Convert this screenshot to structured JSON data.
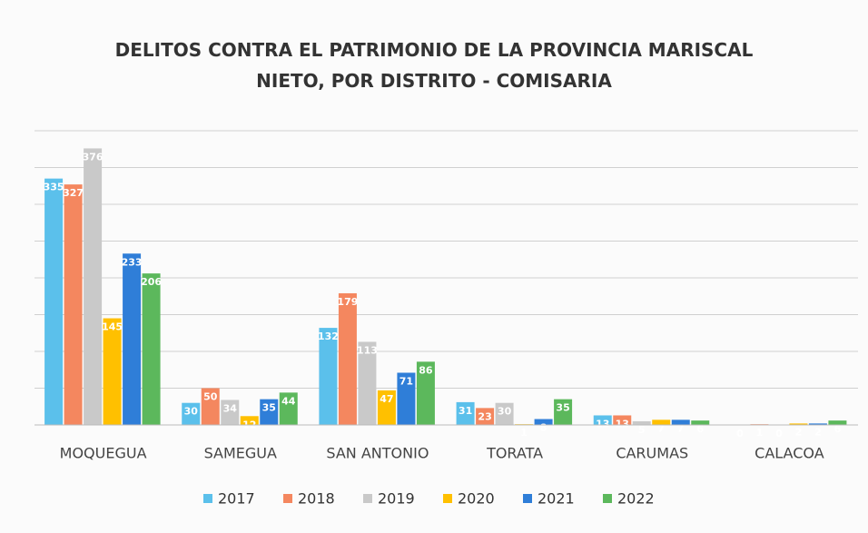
{
  "chart_data": {
    "type": "bar",
    "title": "DELITOS CONTRA EL PATRIMONIO DE LA PROVINCIA MARISCAL NIETO, POR DISTRITO - COMISARIA",
    "categories": [
      "MOQUEGUA",
      "SAMEGUA",
      "SAN ANTONIO",
      "TORATA",
      "CARUMAS",
      "CALACOA"
    ],
    "series": [
      {
        "name": "2017",
        "color": "#5bc0eb",
        "values": [
          335,
          30,
          132,
          31,
          13,
          0
        ]
      },
      {
        "name": "2018",
        "color": "#f4875f",
        "values": [
          327,
          50,
          179,
          23,
          13,
          1
        ]
      },
      {
        "name": "2019",
        "color": "#c9c9c9",
        "values": [
          376,
          34,
          113,
          30,
          5,
          0
        ]
      },
      {
        "name": "2020",
        "color": "#ffc000",
        "values": [
          145,
          12,
          47,
          1,
          7,
          2
        ]
      },
      {
        "name": "2021",
        "color": "#2f7ed8",
        "values": [
          233,
          35,
          71,
          8,
          7,
          2
        ]
      },
      {
        "name": "2022",
        "color": "#5cb85c",
        "values": [
          206,
          44,
          86,
          35,
          6,
          6
        ]
      }
    ],
    "ylim": [
      0,
      400
    ],
    "yticks": [
      0,
      50,
      100,
      150,
      200,
      250,
      300,
      350,
      400
    ],
    "grid": true,
    "legend": "bottom"
  }
}
